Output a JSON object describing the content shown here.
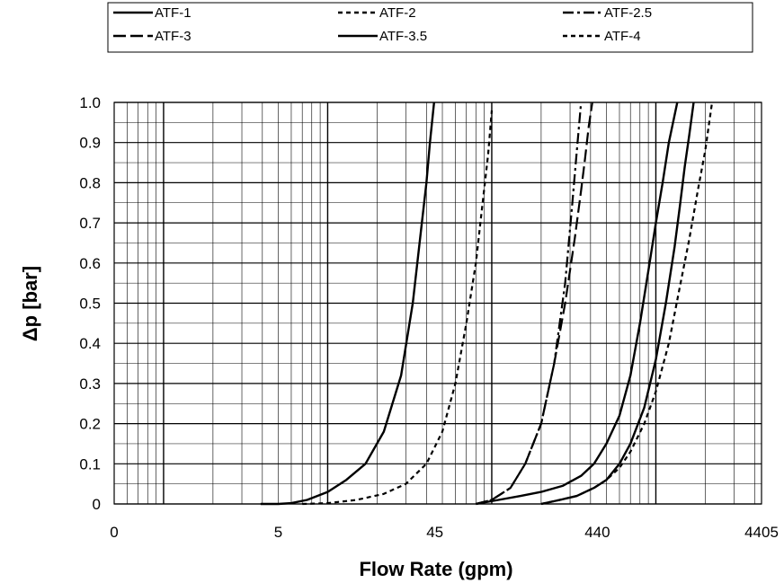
{
  "chart_data": {
    "type": "line",
    "xlabel": "Flow Rate (gpm)",
    "ylabel": "Δp  [bar]",
    "x_scale": "log",
    "x_tick_labels": [
      "0",
      "5",
      "45",
      "440",
      "4405"
    ],
    "xlim": [
      0.5,
      4405
    ],
    "ylim": [
      0,
      1.0
    ],
    "y_ticks": [
      0,
      0.1,
      0.2,
      0.3,
      0.4,
      0.5,
      0.6,
      0.7,
      0.8,
      0.9,
      1.0
    ],
    "y_tick_labels": [
      "0",
      "0.1",
      "0.2",
      "0.3",
      "0.4",
      "0.5",
      "0.6",
      "0.7",
      "0.8",
      "0.9",
      "1.0"
    ],
    "grid": true,
    "legend_position": "top",
    "series": [
      {
        "name": "ATF-1",
        "style": "solid",
        "x": [
          3.9,
          5,
          6,
          7.5,
          10,
          13,
          17,
          22,
          28,
          33,
          37,
          40,
          42,
          44.5
        ],
        "y": [
          0,
          0,
          0.002,
          0.01,
          0.03,
          0.06,
          0.1,
          0.18,
          0.32,
          0.5,
          0.68,
          0.8,
          0.9,
          1.0
        ]
      },
      {
        "name": "ATF-2",
        "style": "dash",
        "x": [
          7,
          10,
          15,
          22,
          30,
          40,
          50,
          60,
          70,
          80,
          88,
          95,
          100
        ],
        "y": [
          0,
          0.002,
          0.01,
          0.025,
          0.05,
          0.1,
          0.18,
          0.3,
          0.45,
          0.6,
          0.75,
          0.87,
          0.98
        ]
      },
      {
        "name": "ATF-2.5",
        "style": "dashdot",
        "x": [
          80,
          100,
          130,
          160,
          200,
          240,
          280,
          310,
          330,
          350
        ],
        "y": [
          0,
          0.01,
          0.04,
          0.1,
          0.2,
          0.35,
          0.55,
          0.75,
          0.88,
          1.0
        ]
      },
      {
        "name": "ATF-3",
        "style": "longdash",
        "x": [
          80,
          100,
          130,
          160,
          200,
          240,
          280,
          320,
          350,
          370,
          390,
          410
        ],
        "y": [
          0,
          0.01,
          0.04,
          0.1,
          0.2,
          0.35,
          0.5,
          0.66,
          0.78,
          0.86,
          0.94,
          1.0
        ]
      },
      {
        "name": "ATF-3.5",
        "style": "solid",
        "x": [
          80,
          110,
          150,
          200,
          270,
          350,
          420,
          500,
          600,
          700,
          800,
          900,
          1000,
          1100,
          1200,
          1350
        ],
        "y": [
          0,
          0.01,
          0.02,
          0.03,
          0.045,
          0.07,
          0.1,
          0.15,
          0.22,
          0.32,
          0.45,
          0.58,
          0.7,
          0.8,
          0.9,
          1.0
        ]
      },
      {
        "name": "ATF-4",
        "style": "dash",
        "x": [
          200,
          260,
          330,
          420,
          500,
          600,
          700,
          850,
          1000,
          1200,
          1400,
          1600,
          1800,
          2000,
          2200
        ],
        "y": [
          0,
          0.01,
          0.02,
          0.04,
          0.06,
          0.09,
          0.13,
          0.2,
          0.28,
          0.4,
          0.54,
          0.66,
          0.78,
          0.88,
          1.0
        ]
      },
      {
        "name": "ATF-3.5",
        "style": "solid",
        "x": [
          200,
          260,
          330,
          420,
          500,
          600,
          700,
          850,
          1000,
          1150,
          1300,
          1400,
          1500,
          1600,
          1700
        ],
        "y": [
          0,
          0.01,
          0.02,
          0.04,
          0.06,
          0.1,
          0.15,
          0.24,
          0.36,
          0.5,
          0.64,
          0.74,
          0.84,
          0.92,
          1.0
        ]
      }
    ]
  }
}
